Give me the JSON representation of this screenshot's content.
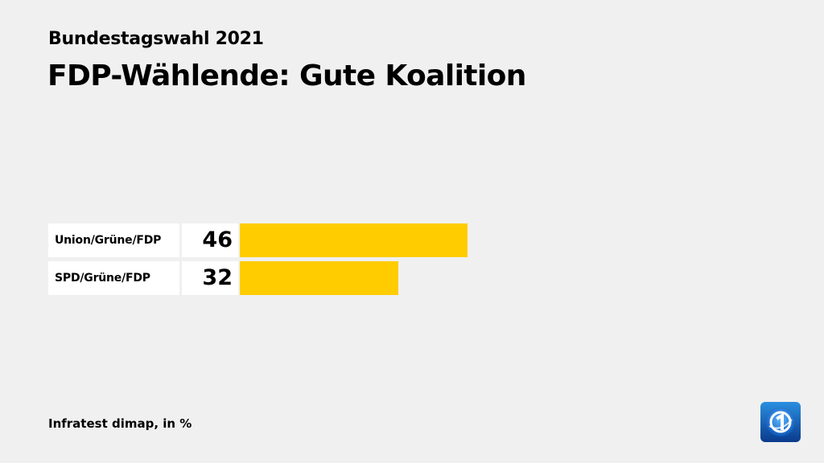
{
  "header": {
    "subtitle": "Bundestagswahl 2021",
    "title": "FDP-Wählende: Gute Koalition"
  },
  "chart_data": {
    "type": "bar",
    "orientation": "horizontal",
    "categories": [
      "Union/Grüne/FDP",
      "SPD/Grüne/FDP"
    ],
    "values": [
      46,
      32
    ],
    "value_labels": [
      "46",
      "32"
    ],
    "xlim": [
      0,
      100
    ],
    "grid": false,
    "legend": "none",
    "bar_color": "#ffcc00"
  },
  "footer": {
    "source": "Infratest dimap, in %"
  },
  "logo": {
    "icon": "tagesschau-logo-icon",
    "colors": [
      "#0a3a8c",
      "#2a8fe0"
    ]
  }
}
